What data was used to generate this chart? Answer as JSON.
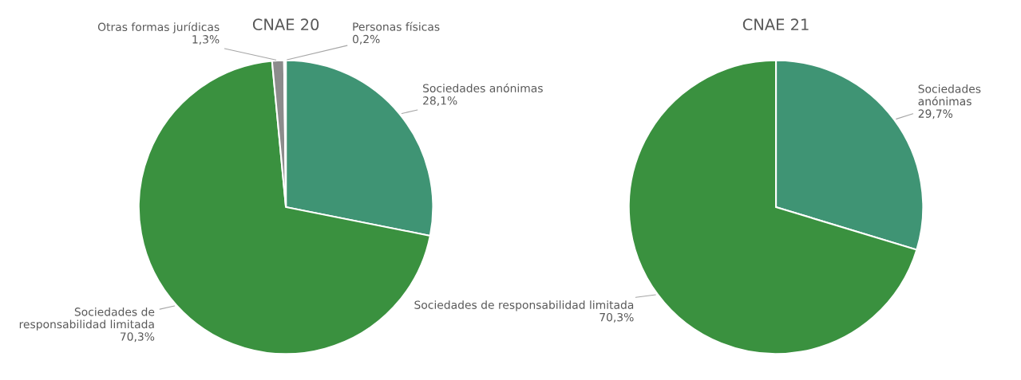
{
  "chart_data": [
    {
      "type": "pie",
      "title": "CNAE 20",
      "categories": [
        "Sociedades anónimas",
        "Sociedades de responsabilidad limitada",
        "Otras formas jurídicas",
        "Personas físicas"
      ],
      "values": [
        28.1,
        70.3,
        1.3,
        0.2
      ],
      "value_labels": [
        "28,1%",
        "70,3%",
        "1,3%",
        "0,2%"
      ],
      "colors": [
        "#3f9474",
        "#3a913f",
        "#8c8c8c",
        "#d0d0d0"
      ]
    },
    {
      "type": "pie",
      "title": "CNAE 21",
      "categories": [
        "Sociedades anónimas",
        "Sociedades de responsabilidad limitada"
      ],
      "values": [
        29.7,
        70.3
      ],
      "value_labels": [
        "29,7%",
        "70,3%"
      ],
      "colors": [
        "#3f9474",
        "#3a913f"
      ]
    }
  ]
}
